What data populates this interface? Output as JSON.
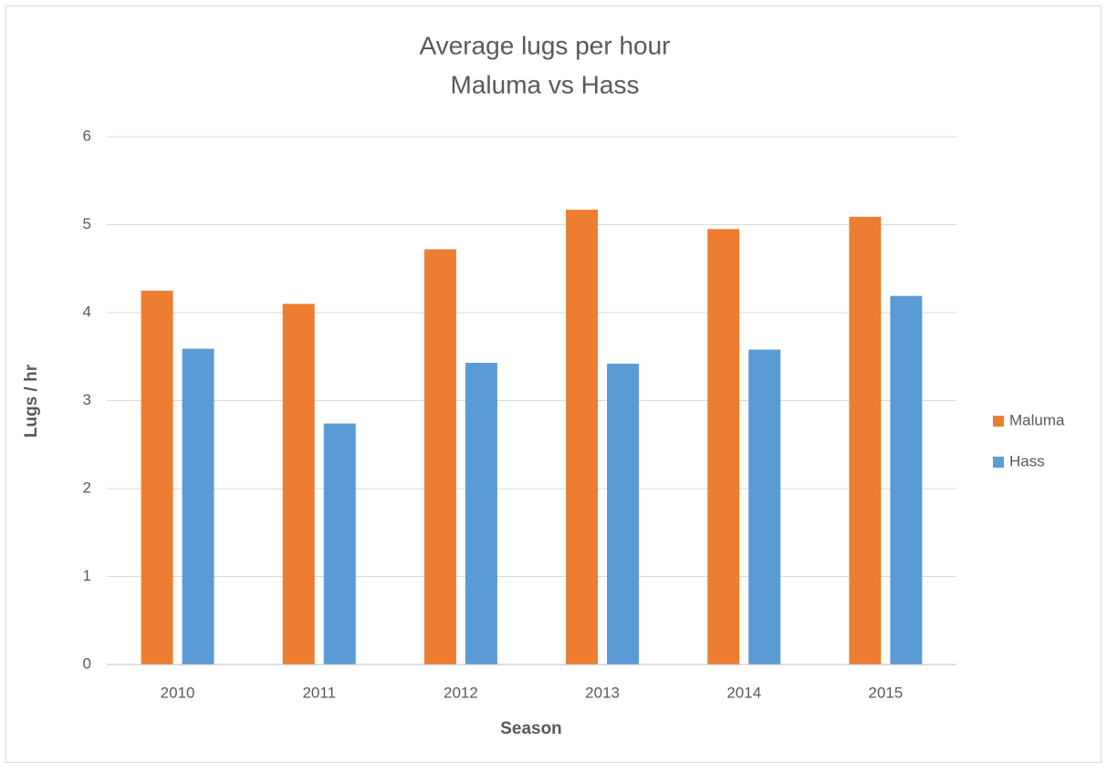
{
  "chart_data": {
    "type": "bar",
    "title": [
      "Average lugs per hour",
      "Maluma vs Hass"
    ],
    "x_label": "Season",
    "y_label": "Lugs / hr",
    "categories": [
      "2010",
      "2011",
      "2012",
      "2013",
      "2014",
      "2015"
    ],
    "series": [
      {
        "name": "Maluma",
        "color": "#ed7d31",
        "values": [
          4.25,
          4.1,
          4.72,
          5.17,
          4.95,
          5.09
        ]
      },
      {
        "name": "Hass",
        "color": "#5b9bd5",
        "values": [
          3.59,
          2.74,
          3.43,
          3.42,
          3.58,
          4.19
        ]
      }
    ],
    "ylim": [
      0,
      6
    ],
    "yticks": [
      0,
      1,
      2,
      3,
      4,
      5,
      6
    ],
    "grid": true,
    "legend": "right"
  }
}
